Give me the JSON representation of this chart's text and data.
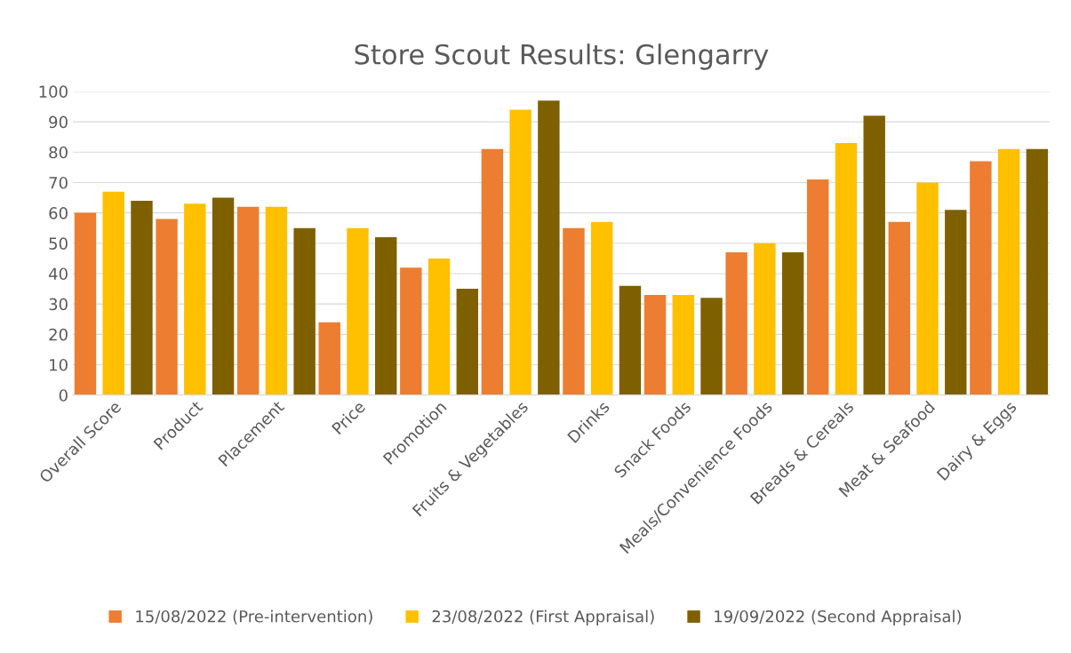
{
  "chart_data": {
    "type": "bar",
    "title": "Store Scout Results: Glengarry",
    "categories": [
      "Overall Score",
      "Product",
      "Placement",
      "Price",
      "Promotion",
      "Fruits & Vegetables",
      "Drinks",
      "Snack Foods",
      "Meals/Convenience Foods",
      "Breads & Cereals",
      "Meat & Seafood",
      "Dairy & Eggs"
    ],
    "series": [
      {
        "name": "15/08/2022 (Pre-intervention)",
        "color": "#ed7d31",
        "values": [
          60,
          58,
          62,
          24,
          42,
          81,
          55,
          33,
          47,
          71,
          57,
          77
        ]
      },
      {
        "name": "23/08/2022 (First Appraisal)",
        "color": "#ffc000",
        "values": [
          67,
          63,
          62,
          55,
          45,
          94,
          57,
          33,
          50,
          83,
          70,
          81
        ]
      },
      {
        "name": "19/09/2022 (Second Appraisal)",
        "color": "#7f6000",
        "values": [
          64,
          65,
          55,
          52,
          35,
          97,
          36,
          32,
          47,
          92,
          61,
          81
        ]
      }
    ],
    "ylim": [
      0,
      100
    ],
    "yticks": [
      0,
      10,
      20,
      30,
      40,
      50,
      60,
      70,
      80,
      90,
      100
    ],
    "grid": "y",
    "legend": "bottom"
  }
}
